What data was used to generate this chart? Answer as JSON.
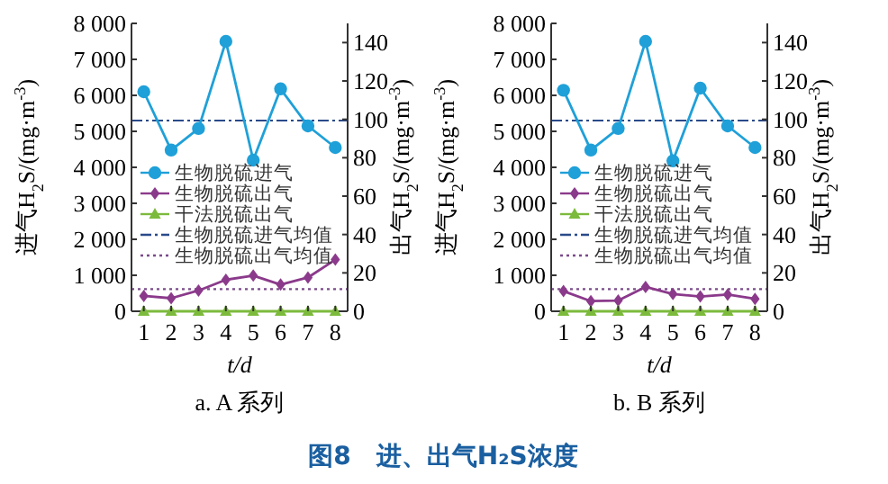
{
  "chart_data": [
    {
      "type": "line",
      "title": "a. A 系列",
      "xlabel": "t/d",
      "ylabel": "进气H$_{2}$S/(mg·m$^{-3}$)",
      "y2label": "出气H$_{2}$S/(mg·m$^{-3}$)",
      "annotations": [
        "图8　进、出气H₂S浓度"
      ],
      "categories": [
        "1",
        "2",
        "3",
        "4",
        "5",
        "6",
        "7",
        "8"
      ],
      "series": [
        {
          "name": "生物脱硫进气",
          "color": "#1fa0d8",
          "marker": "circle",
          "values": [
            6100,
            4480,
            5080,
            7500,
            4200,
            6180,
            5150,
            4550
          ]
        },
        {
          "name": "生物脱硫出气",
          "color": "#8b3a8b",
          "marker": "diamond",
          "axis": "y2",
          "values": [
            8.0,
            6.8,
            10.8,
            16.4,
            18.6,
            13.9,
            17.6,
            26.9
          ]
        },
        {
          "name": "干法脱硫出气",
          "color": "#7cba3c",
          "marker": "triangle",
          "axis": "y2",
          "values": [
            0,
            0,
            0,
            0,
            0,
            0,
            0,
            0
          ]
        }
      ],
      "ref_lines": [
        {
          "axis": "y",
          "value": 5300,
          "label": "生物脱硫进气均值",
          "color": "#2a4a8a",
          "line_style": "dashed"
        },
        {
          "axis": "y2",
          "value": 11.5,
          "label": "生物脱硫出气均值",
          "color": "#7a4a8a",
          "line_style": "dotted"
        }
      ],
      "ylim": [
        0,
        8000
      ],
      "yticks": [
        0,
        {
          "value": 1000,
          "label": "1 000"
        },
        {
          "value": 2000,
          "label": "2 000"
        },
        {
          "value": 3000,
          "label": "3 000"
        },
        {
          "value": 4000,
          "label": "4 000"
        },
        {
          "value": 5000,
          "label": "5 000"
        },
        {
          "value": 6000,
          "label": "6 000"
        },
        {
          "value": 7000,
          "label": "7 000"
        },
        {
          "value": 8000,
          "label": "8 000"
        }
      ],
      "y2lim": [
        0,
        150
      ],
      "y2ticks": [
        0,
        20,
        40,
        60,
        80,
        100,
        120,
        140
      ],
      "legend": "left",
      "grid": false
    },
    {
      "type": "line",
      "title": "b. B 系列",
      "xlabel": "t/d",
      "ylabel": "进气H$_{2}$S/(mg·m$^{-3}$)",
      "y2label": "出气H$_{2}$S/(mg·m$^{-3}$)",
      "categories": [
        "1",
        "2",
        "3",
        "4",
        "5",
        "6",
        "7",
        "8"
      ],
      "series": [
        {
          "name": "生物脱硫进气",
          "color": "#1fa0d8",
          "marker": "circle",
          "values": [
            6140,
            4480,
            5080,
            7500,
            4180,
            6200,
            5150,
            4550
          ]
        },
        {
          "name": "生物脱硫出气",
          "color": "#8b3a8b",
          "marker": "diamond",
          "axis": "y2",
          "values": [
            10.5,
            5.3,
            5.6,
            12.7,
            9.0,
            7.7,
            8.7,
            6.5
          ]
        },
        {
          "name": "干法脱硫出气",
          "color": "#7cba3c",
          "marker": "triangle",
          "axis": "y2",
          "values": [
            0,
            0,
            0,
            0,
            0,
            0,
            0,
            0
          ]
        }
      ],
      "ref_lines": [
        {
          "axis": "y",
          "value": 5300,
          "label": "生物脱硫进气均值",
          "color": "#2a4a8a",
          "line_style": "dashed"
        },
        {
          "axis": "y2",
          "value": 11.5,
          "label": "生物脱硫出气均值",
          "color": "#7a4a8a",
          "line_style": "dotted"
        }
      ],
      "ylim": [
        0,
        8000
      ],
      "yticks": [
        0,
        {
          "value": 1000,
          "label": "1 000"
        },
        {
          "value": 2000,
          "label": "2 000"
        },
        {
          "value": 3000,
          "label": "3 000"
        },
        {
          "value": 4000,
          "label": "4 000"
        },
        {
          "value": 5000,
          "label": "5 000"
        },
        {
          "value": 6000,
          "label": "6 000"
        },
        {
          "value": 7000,
          "label": "7 000"
        },
        {
          "value": 8000,
          "label": "8 000"
        }
      ],
      "y2lim": [
        0,
        150
      ],
      "y2ticks": [
        0,
        20,
        40,
        60,
        80,
        100,
        120,
        140
      ],
      "legend": "left",
      "grid": false
    }
  ]
}
